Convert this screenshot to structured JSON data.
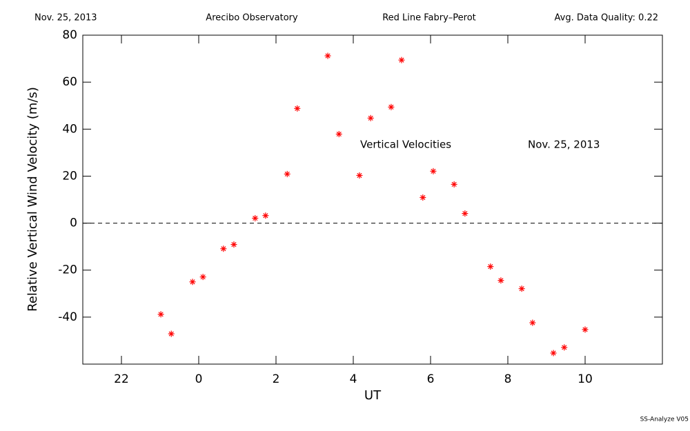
{
  "chart_data": {
    "type": "scatter",
    "header": [
      "Nov. 25, 2013",
      "Arecibo Observatory",
      "Red Line Fabry–Perot",
      "Avg. Data Quality: 0.22"
    ],
    "annotations": [
      "Vertical Velocities",
      "Nov. 25, 2013"
    ],
    "footer": "SS-Analyze V05",
    "x_label": "UT",
    "y_label": "Relative Vertical Wind Velocity (m/s)",
    "xlim": [
      -3,
      12
    ],
    "ylim": [
      -60,
      80
    ],
    "xticks": [
      {
        "value": -2,
        "label": "22"
      },
      0,
      2,
      4,
      6,
      8,
      10
    ],
    "yticks": [
      -40,
      -20,
      0,
      20,
      40,
      60,
      80
    ],
    "reference_line": 0,
    "color": "#ff0000",
    "x": [
      -0.98,
      -0.71,
      -0.16,
      0.11,
      0.64,
      0.91,
      1.46,
      1.73,
      2.29,
      2.55,
      3.34,
      3.63,
      4.16,
      4.45,
      4.98,
      5.25,
      5.8,
      6.07,
      6.61,
      6.89,
      7.55,
      7.82,
      8.36,
      8.64,
      9.18,
      9.46,
      10.0
    ],
    "values": [
      -38.8,
      -47.1,
      -25.0,
      -22.9,
      -10.9,
      -9.1,
      2.1,
      3.2,
      20.9,
      48.8,
      71.2,
      37.9,
      20.3,
      44.7,
      49.4,
      69.4,
      10.9,
      22.1,
      16.5,
      4.1,
      -18.5,
      -24.4,
      -27.9,
      -42.4,
      -55.3,
      -52.9,
      -45.3
    ]
  }
}
